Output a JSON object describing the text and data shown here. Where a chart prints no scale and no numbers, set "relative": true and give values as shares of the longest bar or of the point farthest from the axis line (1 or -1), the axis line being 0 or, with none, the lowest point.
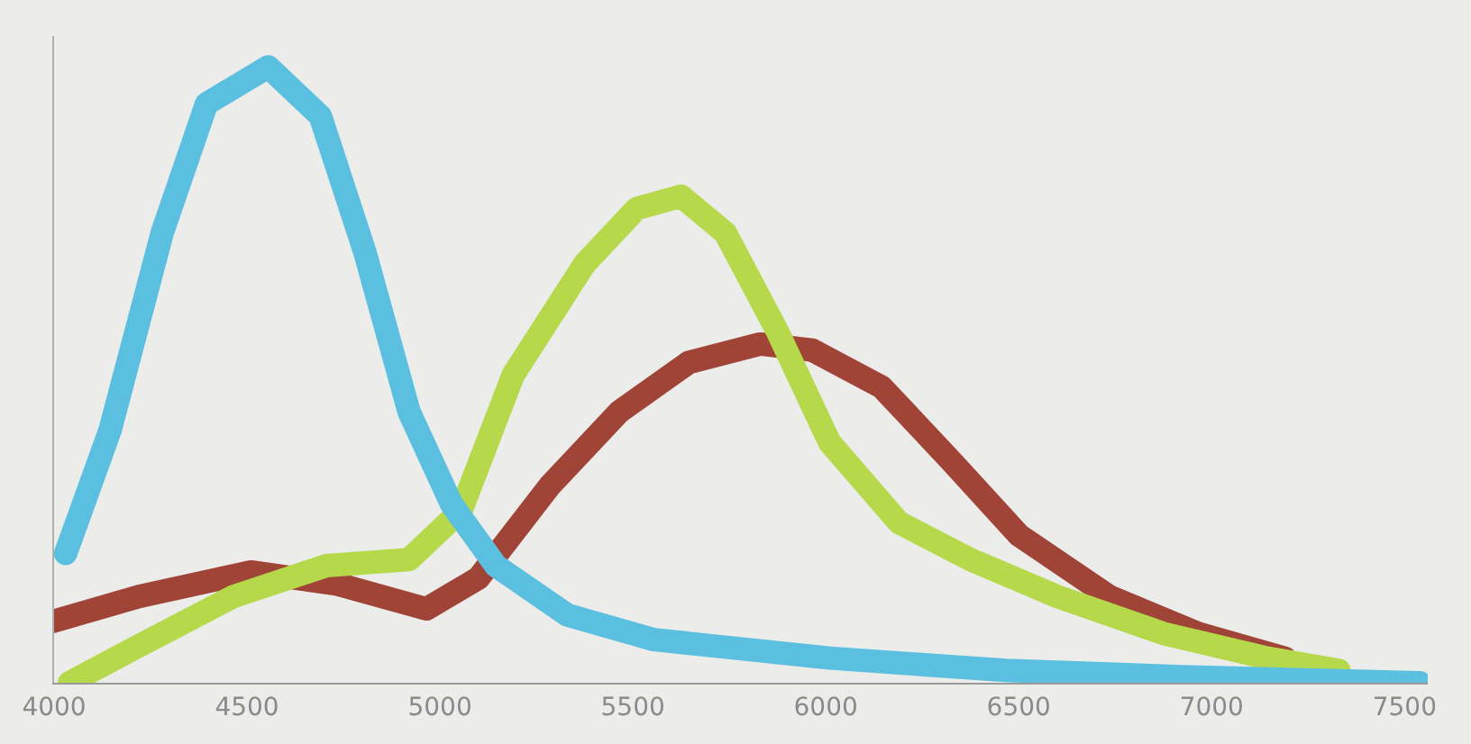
{
  "chart_data": {
    "type": "line",
    "relative": true,
    "tick_labels": "x",
    "grid": false,
    "line_style": "solid",
    "xlim": [
      4000,
      7560
    ],
    "xticks": [
      4000,
      4500,
      5000,
      5500,
      6000,
      6500,
      7000,
      7500
    ],
    "series": [
      {
        "color": "#a04438",
        "x": [
          4000,
          4220,
          4510,
          4735,
          4965,
          5100,
          5285,
          5465,
          5645,
          5830,
          5965,
          6145,
          6325,
          6500,
          6735,
          6965,
          7190
        ],
        "values": [
          0.1,
          0.14,
          0.18,
          0.16,
          0.12,
          0.17,
          0.32,
          0.44,
          0.52,
          0.55,
          0.54,
          0.48,
          0.36,
          0.24,
          0.14,
          0.08,
          0.04
        ]
      },
      {
        "color": "#b5d94a",
        "x": [
          4040,
          4220,
          4465,
          4705,
          4920,
          5055,
          5190,
          5375,
          5510,
          5625,
          5740,
          5875,
          6010,
          6190,
          6375,
          6600,
          6875,
          7145,
          7330
        ],
        "values": [
          0.0,
          0.06,
          0.14,
          0.19,
          0.2,
          0.28,
          0.5,
          0.68,
          0.77,
          0.79,
          0.73,
          0.57,
          0.39,
          0.26,
          0.2,
          0.14,
          0.08,
          0.04,
          0.02
        ]
      },
      {
        "color": "#5bbfe0",
        "x": [
          4030,
          4145,
          4280,
          4395,
          4555,
          4690,
          4805,
          4920,
          5030,
          5145,
          5330,
          5555,
          6010,
          6465,
          6920,
          7540
        ],
        "values": [
          0.21,
          0.41,
          0.73,
          0.94,
          1.0,
          0.92,
          0.7,
          0.44,
          0.29,
          0.19,
          0.11,
          0.07,
          0.04,
          0.02,
          0.01,
          0.0
        ]
      }
    ]
  }
}
